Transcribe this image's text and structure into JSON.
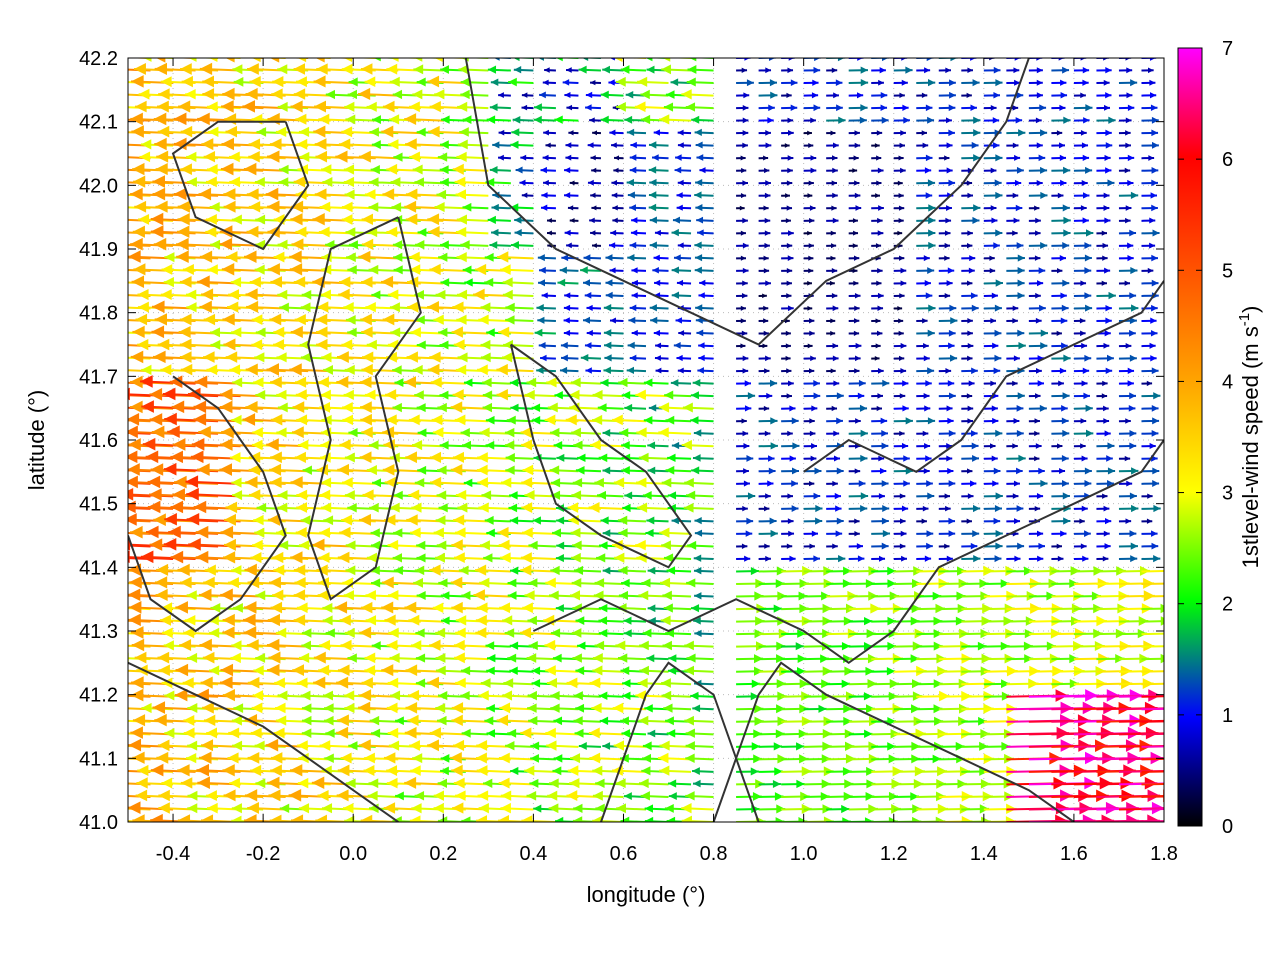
{
  "chart_data": {
    "type": "vector-field",
    "xlabel": "longitude (°)",
    "ylabel": "latitude (°)",
    "xlim": [
      -0.5,
      1.8
    ],
    "ylim": [
      41.0,
      42.2
    ],
    "x_ticks": [
      "-0.4",
      "-0.2",
      "0.0",
      "0.2",
      "0.4",
      "0.6",
      "0.8",
      "1.0",
      "1.2",
      "1.4",
      "1.6",
      "1.8"
    ],
    "y_ticks": [
      "41.0",
      "41.1",
      "41.2",
      "41.3",
      "41.4",
      "41.5",
      "41.6",
      "41.7",
      "41.8",
      "41.9",
      "42.0",
      "42.1",
      "42.2"
    ],
    "grid": true,
    "colorbar": {
      "label_main": "1stlevel-wind speed (m s",
      "label_exp": "-1",
      "label_close": ")",
      "range": [
        0,
        7
      ],
      "ticks": [
        "0",
        "1",
        "2",
        "3",
        "4",
        "5",
        "6",
        "7"
      ],
      "colors": [
        "#000000",
        "#0000ff",
        "#00ff00",
        "#ffff00",
        "#ff6600",
        "#ff0000",
        "#ff00ff"
      ]
    },
    "contours": [
      [
        [
          -0.15,
          42.1
        ],
        [
          -0.1,
          42.0
        ],
        [
          -0.2,
          41.9
        ],
        [
          -0.35,
          41.95
        ],
        [
          -0.4,
          42.05
        ],
        [
          -0.3,
          42.1
        ],
        [
          -0.15,
          42.1
        ]
      ],
      [
        [
          0.1,
          41.95
        ],
        [
          0.15,
          41.8
        ],
        [
          0.05,
          41.7
        ],
        [
          0.1,
          41.55
        ],
        [
          0.05,
          41.4
        ],
        [
          -0.05,
          41.35
        ],
        [
          -0.1,
          41.45
        ],
        [
          -0.05,
          41.6
        ],
        [
          -0.1,
          41.75
        ],
        [
          -0.05,
          41.9
        ],
        [
          0.1,
          41.95
        ]
      ],
      [
        [
          0.25,
          42.2
        ],
        [
          0.3,
          42.0
        ],
        [
          0.45,
          41.9
        ],
        [
          0.6,
          41.85
        ],
        [
          0.75,
          41.8
        ],
        [
          0.9,
          41.75
        ],
        [
          1.05,
          41.85
        ],
        [
          1.2,
          41.9
        ],
        [
          1.35,
          42.0
        ],
        [
          1.45,
          42.1
        ],
        [
          1.5,
          42.2
        ]
      ],
      [
        [
          0.35,
          41.75
        ],
        [
          0.45,
          41.7
        ],
        [
          0.55,
          41.6
        ],
        [
          0.65,
          41.55
        ],
        [
          0.7,
          41.5
        ],
        [
          0.75,
          41.45
        ],
        [
          0.7,
          41.4
        ],
        [
          0.55,
          41.45
        ],
        [
          0.45,
          41.5
        ],
        [
          0.4,
          41.6
        ],
        [
          0.35,
          41.75
        ]
      ],
      [
        [
          0.4,
          41.3
        ],
        [
          0.55,
          41.35
        ],
        [
          0.7,
          41.3
        ],
        [
          0.85,
          41.35
        ],
        [
          1.0,
          41.3
        ],
        [
          1.1,
          41.25
        ],
        [
          1.2,
          41.3
        ],
        [
          1.3,
          41.4
        ],
        [
          1.45,
          41.45
        ],
        [
          1.6,
          41.5
        ],
        [
          1.75,
          41.55
        ],
        [
          1.8,
          41.6
        ]
      ],
      [
        [
          0.8,
          41.0
        ],
        [
          0.85,
          41.1
        ],
        [
          0.9,
          41.2
        ],
        [
          0.95,
          41.25
        ],
        [
          1.05,
          41.2
        ],
        [
          1.2,
          41.15
        ],
        [
          1.35,
          41.1
        ],
        [
          1.5,
          41.05
        ],
        [
          1.6,
          41.0
        ]
      ],
      [
        [
          0.55,
          41.0
        ],
        [
          0.6,
          41.1
        ],
        [
          0.65,
          41.2
        ],
        [
          0.7,
          41.25
        ],
        [
          0.8,
          41.2
        ],
        [
          0.85,
          41.1
        ],
        [
          0.9,
          41.0
        ]
      ],
      [
        [
          -0.4,
          41.7
        ],
        [
          -0.3,
          41.65
        ],
        [
          -0.2,
          41.55
        ],
        [
          -0.15,
          41.45
        ],
        [
          -0.25,
          41.35
        ],
        [
          -0.35,
          41.3
        ],
        [
          -0.45,
          41.35
        ],
        [
          -0.5,
          41.45
        ]
      ],
      [
        [
          -0.5,
          41.25
        ],
        [
          -0.35,
          41.2
        ],
        [
          -0.2,
          41.15
        ],
        [
          -0.1,
          41.1
        ],
        [
          0.0,
          41.05
        ],
        [
          0.1,
          41.0
        ]
      ],
      [
        [
          1.0,
          41.55
        ],
        [
          1.1,
          41.6
        ],
        [
          1.25,
          41.55
        ],
        [
          1.35,
          41.6
        ],
        [
          1.45,
          41.7
        ],
        [
          1.6,
          41.75
        ],
        [
          1.75,
          41.8
        ],
        [
          1.8,
          41.85
        ]
      ]
    ]
  }
}
